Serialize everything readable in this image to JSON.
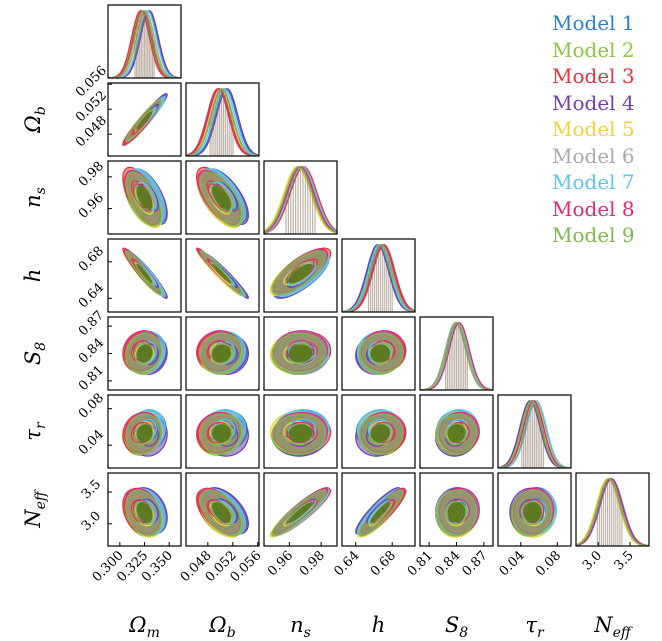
{
  "chart_data": {
    "type": "corner",
    "parameters": [
      {
        "key": "Omega_m",
        "label": "Ω_m",
        "sub": "m",
        "sym": "Ω",
        "range": [
          0.288,
          0.362
        ],
        "mean": 0.325,
        "sigma": 0.009,
        "ticks": [
          "0.300",
          "0.325",
          "0.350"
        ],
        "tickvals": [
          0.3,
          0.325,
          0.35
        ]
      },
      {
        "key": "Omega_b",
        "label": "Ω_b",
        "sub": "b",
        "sym": "Ω",
        "range": [
          0.0445,
          0.0562
        ],
        "mean": 0.0502,
        "sigma": 0.0017,
        "ticks": [
          "0.048",
          "0.052",
          "0.056"
        ],
        "tickvals": [
          0.048,
          0.052,
          0.056
        ]
      },
      {
        "key": "n_s",
        "label": "n_s",
        "sub": "s",
        "sym": "n",
        "range": [
          0.944,
          0.99
        ],
        "mean": 0.967,
        "sigma": 0.0085,
        "ticks": [
          "0.96",
          "0.98"
        ],
        "tickvals": [
          0.96,
          0.98
        ]
      },
      {
        "key": "h",
        "label": "h",
        "sub": "",
        "sym": "h",
        "range": [
          0.625,
          0.705
        ],
        "mean": 0.667,
        "sigma": 0.012,
        "ticks": [
          "0.64",
          "0.68"
        ],
        "tickvals": [
          0.64,
          0.68
        ]
      },
      {
        "key": "S_8",
        "label": "S_8",
        "sub": "8",
        "sym": "S",
        "range": [
          0.8,
          0.88
        ],
        "mean": 0.84,
        "sigma": 0.011,
        "ticks": [
          "0.81",
          "0.84",
          "0.87"
        ],
        "tickvals": [
          0.81,
          0.84,
          0.87
        ]
      },
      {
        "key": "tau_r",
        "label": "τ_r",
        "sub": "r",
        "sym": "τ",
        "range": [
          0.015,
          0.095
        ],
        "mean": 0.053,
        "sigma": 0.011,
        "ticks": [
          "0.04",
          "0.08"
        ],
        "tickvals": [
          0.04,
          0.08
        ]
      },
      {
        "key": "N_eff",
        "label": "N_eff",
        "sub": "eff",
        "sym": "N",
        "range": [
          2.65,
          3.8
        ],
        "mean": 3.18,
        "sigma": 0.18,
        "ticks": [
          "3.0",
          "3.5"
        ],
        "tickvals": [
          3.0,
          3.5
        ]
      }
    ],
    "correlations": [
      [
        1,
        0.95,
        -0.6,
        -0.95,
        0.1,
        0.1,
        -0.3
      ],
      [
        0.95,
        1,
        -0.65,
        -0.97,
        0.05,
        0.05,
        -0.55
      ],
      [
        -0.6,
        -0.65,
        1,
        0.75,
        0.05,
        0.05,
        0.92
      ],
      [
        -0.95,
        -0.97,
        0.75,
        1,
        0.05,
        0.05,
        0.9
      ],
      [
        0.1,
        0.05,
        0.05,
        0.05,
        1,
        0.05,
        0.05
      ],
      [
        0.1,
        0.05,
        0.05,
        0.05,
        0.05,
        1,
        0.05
      ],
      [
        -0.3,
        -0.55,
        0.92,
        0.9,
        0.05,
        0.05,
        1
      ]
    ],
    "series": [
      {
        "name": "Model 1",
        "color": "#2b7fcf",
        "shift": [
          0.004,
          0.0007,
          0.001,
          -0.002,
          0.0,
          0.003,
          0.03
        ]
      },
      {
        "name": "Model 2",
        "color": "#8dc63f",
        "shift": [
          -0.003,
          -0.0005,
          -0.001,
          0.002,
          0.001,
          -0.002,
          -0.02
        ]
      },
      {
        "name": "Model 3",
        "color": "#e8323c",
        "shift": [
          -0.004,
          -0.0006,
          0.002,
          0.004,
          0.002,
          0.0,
          0.01
        ]
      },
      {
        "name": "Model 4",
        "color": "#7340b2",
        "shift": [
          0.005,
          0.0009,
          0.0,
          -0.003,
          -0.001,
          -0.003,
          0.02
        ]
      },
      {
        "name": "Model 5",
        "color": "#f2d33a",
        "shift": [
          0.0,
          -0.0002,
          -0.002,
          0.0,
          0.0,
          0.002,
          -0.03
        ]
      },
      {
        "name": "Model 6",
        "color": "#a8a8a8",
        "shift": [
          0.001,
          0.0001,
          0.001,
          0.0,
          -0.001,
          0.0,
          0.0
        ]
      },
      {
        "name": "Model 7",
        "color": "#5ac8e8",
        "shift": [
          0.003,
          0.0004,
          0.001,
          -0.001,
          0.002,
          0.004,
          0.01
        ]
      },
      {
        "name": "Model 8",
        "color": "#e0287d",
        "shift": [
          -0.002,
          -0.0004,
          0.0,
          0.003,
          0.003,
          0.001,
          0.02
        ]
      },
      {
        "name": "Model 9",
        "color": "#7cb84a",
        "shift": [
          -0.001,
          0.0,
          -0.001,
          0.001,
          0.0,
          -0.001,
          -0.01
        ]
      }
    ],
    "fill_color": "#5a7a1e",
    "hist_fill_color": "#8b7560",
    "legend_placement": "top-right"
  }
}
